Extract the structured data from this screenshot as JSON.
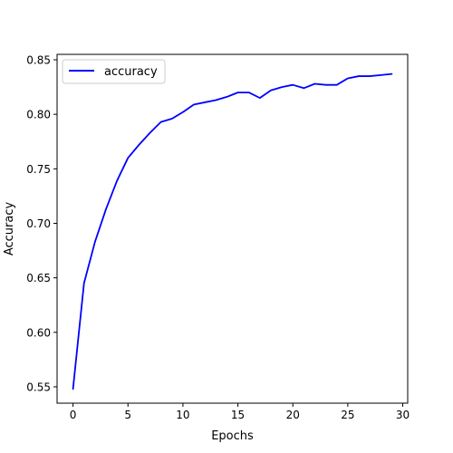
{
  "chart_data": {
    "type": "line",
    "title": "",
    "xlabel": "Epochs",
    "ylabel": "Accuracy",
    "xlim": [
      -1.45,
      30.45
    ],
    "ylim": [
      0.535,
      0.855
    ],
    "xticks": [
      0,
      5,
      10,
      15,
      20,
      25,
      30
    ],
    "yticks": [
      0.55,
      0.6,
      0.65,
      0.7,
      0.75,
      0.8,
      0.85
    ],
    "xtick_labels": [
      "0",
      "5",
      "10",
      "15",
      "20",
      "25",
      "30"
    ],
    "ytick_labels": [
      "0.55",
      "0.60",
      "0.65",
      "0.70",
      "0.75",
      "0.80",
      "0.85"
    ],
    "grid": false,
    "legend_position": "upper-left",
    "x": [
      0,
      1,
      2,
      3,
      4,
      5,
      6,
      7,
      8,
      9,
      10,
      11,
      12,
      13,
      14,
      15,
      16,
      17,
      18,
      19,
      20,
      21,
      22,
      23,
      24,
      25,
      26,
      27,
      28,
      29
    ],
    "series": [
      {
        "name": "accuracy",
        "color": "#0000ff",
        "values": [
          0.548,
          0.645,
          0.683,
          0.713,
          0.739,
          0.76,
          0.772,
          0.783,
          0.793,
          0.796,
          0.802,
          0.809,
          0.811,
          0.813,
          0.816,
          0.82,
          0.82,
          0.815,
          0.822,
          0.825,
          0.827,
          0.824,
          0.828,
          0.827,
          0.827,
          0.833,
          0.835,
          0.835,
          0.836,
          0.837
        ]
      }
    ]
  }
}
